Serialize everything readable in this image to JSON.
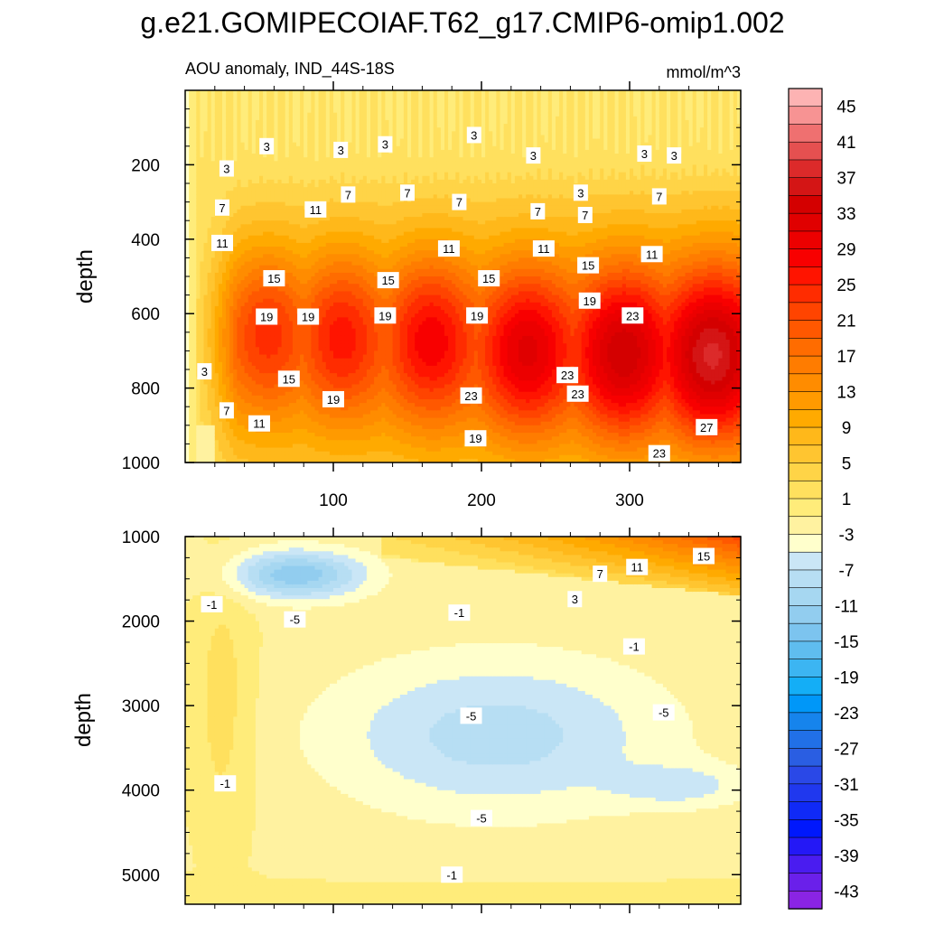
{
  "figure": {
    "title": "g.e21.GOMIPECOIAF.T62_g17.CMIP6-omip1.002",
    "subtitle_left": "AOU anomaly, IND_44S-18S",
    "units": "mmol/m^3"
  },
  "chart_data": [
    {
      "type": "contour",
      "name": "upper panel",
      "ylabel": "depth",
      "xlabel": "",
      "xlim": [
        0,
        375
      ],
      "ylim": [
        1000,
        0
      ],
      "xticks": [
        100,
        200,
        300
      ],
      "yticks": [
        200,
        400,
        600,
        800,
        1000
      ],
      "field": {
        "surface_value": 1,
        "cells": [
          {
            "x": 55,
            "y": 640,
            "value": 21
          },
          {
            "x": 105,
            "y": 650,
            "value": 22
          },
          {
            "x": 165,
            "y": 660,
            "value": 23
          },
          {
            "x": 230,
            "y": 700,
            "value": 25
          },
          {
            "x": 295,
            "y": 710,
            "value": 27
          },
          {
            "x": 355,
            "y": 720,
            "value": 29
          }
        ]
      },
      "contour_labels": [
        {
          "text": "3",
          "x": 55,
          "y": 150
        },
        {
          "text": "3",
          "x": 105,
          "y": 160
        },
        {
          "text": "3",
          "x": 135,
          "y": 145
        },
        {
          "text": "3",
          "x": 195,
          "y": 120
        },
        {
          "text": "3",
          "x": 235,
          "y": 175
        },
        {
          "text": "3",
          "x": 310,
          "y": 170
        },
        {
          "text": "3",
          "x": 330,
          "y": 175
        },
        {
          "text": "3",
          "x": 28,
          "y": 210
        },
        {
          "text": "3",
          "x": 267,
          "y": 275
        },
        {
          "text": "3",
          "x": 13,
          "y": 755
        },
        {
          "text": "7",
          "x": 110,
          "y": 280
        },
        {
          "text": "7",
          "x": 150,
          "y": 275
        },
        {
          "text": "7",
          "x": 185,
          "y": 300
        },
        {
          "text": "7",
          "x": 238,
          "y": 325
        },
        {
          "text": "7",
          "x": 270,
          "y": 335
        },
        {
          "text": "7",
          "x": 320,
          "y": 285
        },
        {
          "text": "7",
          "x": 25,
          "y": 315
        },
        {
          "text": "7",
          "x": 28,
          "y": 860
        },
        {
          "text": "11",
          "x": 88,
          "y": 320
        },
        {
          "text": "11",
          "x": 25,
          "y": 410
        },
        {
          "text": "11",
          "x": 178,
          "y": 425
        },
        {
          "text": "11",
          "x": 242,
          "y": 425
        },
        {
          "text": "11",
          "x": 315,
          "y": 440
        },
        {
          "text": "11",
          "x": 50,
          "y": 895
        },
        {
          "text": "15",
          "x": 60,
          "y": 505
        },
        {
          "text": "15",
          "x": 137,
          "y": 510
        },
        {
          "text": "15",
          "x": 205,
          "y": 505
        },
        {
          "text": "15",
          "x": 272,
          "y": 470
        },
        {
          "text": "15",
          "x": 70,
          "y": 775
        },
        {
          "text": "19",
          "x": 55,
          "y": 608
        },
        {
          "text": "19",
          "x": 83,
          "y": 608
        },
        {
          "text": "19",
          "x": 135,
          "y": 605
        },
        {
          "text": "19",
          "x": 197,
          "y": 605
        },
        {
          "text": "19",
          "x": 273,
          "y": 565
        },
        {
          "text": "19",
          "x": 100,
          "y": 830
        },
        {
          "text": "19",
          "x": 196,
          "y": 935
        },
        {
          "text": "23",
          "x": 302,
          "y": 605
        },
        {
          "text": "23",
          "x": 258,
          "y": 765
        },
        {
          "text": "23",
          "x": 193,
          "y": 820
        },
        {
          "text": "23",
          "x": 265,
          "y": 815
        },
        {
          "text": "23",
          "x": 320,
          "y": 975
        },
        {
          "text": "27",
          "x": 352,
          "y": 905
        }
      ]
    },
    {
      "type": "contour",
      "name": "lower panel",
      "ylabel": "depth",
      "xlabel": "",
      "xlim": [
        0,
        375
      ],
      "ylim": [
        5350,
        1000
      ],
      "xticks": [
        100,
        200,
        300
      ],
      "yticks": [
        1000,
        2000,
        3000,
        4000,
        5000
      ],
      "field": {
        "top_values": [
          -3,
          -7,
          -11,
          3,
          7,
          11,
          15
        ],
        "minima": [
          {
            "x": 75,
            "y": 1450,
            "value": -11
          },
          {
            "x": 195,
            "y": 3300,
            "value": -7
          },
          {
            "x": 335,
            "y": 3950,
            "value": -9
          }
        ]
      },
      "contour_labels": [
        {
          "text": "15",
          "x": 350,
          "y": 1230
        },
        {
          "text": "11",
          "x": 305,
          "y": 1360
        },
        {
          "text": "7",
          "x": 280,
          "y": 1440
        },
        {
          "text": "3",
          "x": 263,
          "y": 1740
        },
        {
          "text": "-1",
          "x": 18,
          "y": 1800
        },
        {
          "text": "-5",
          "x": 74,
          "y": 1980
        },
        {
          "text": "-1",
          "x": 185,
          "y": 1900
        },
        {
          "text": "-1",
          "x": 303,
          "y": 2300
        },
        {
          "text": "-5",
          "x": 193,
          "y": 3120
        },
        {
          "text": "-5",
          "x": 323,
          "y": 3080
        },
        {
          "text": "-1",
          "x": 27,
          "y": 3920
        },
        {
          "text": "-5",
          "x": 200,
          "y": 4330
        },
        {
          "text": "-1",
          "x": 180,
          "y": 5000
        }
      ]
    }
  ],
  "colorbar": {
    "labels": [
      "45",
      "41",
      "37",
      "33",
      "29",
      "25",
      "21",
      "17",
      "13",
      "9",
      "5",
      "1",
      "-3",
      "-7",
      "-11",
      "-15",
      "-19",
      "-23",
      "-27",
      "-31",
      "-35",
      "-39",
      "-43"
    ],
    "colors": [
      "#fdb3b3",
      "#f79393",
      "#ef7070",
      "#e55050",
      "#dc2a2a",
      "#d41515",
      "#d40000",
      "#e00000",
      "#ec0000",
      "#f80000",
      "#ff1400",
      "#ff2c00",
      "#ff4400",
      "#ff5800",
      "#ff6c00",
      "#ff7c00",
      "#ff8c00",
      "#ff9a00",
      "#ffaa00",
      "#ffb81a",
      "#ffc530",
      "#ffd447",
      "#ffe05e",
      "#ffec7a",
      "#fff2a0",
      "#ffffcc",
      "#cae6f6",
      "#b7def3",
      "#a6d7f1",
      "#92cdef",
      "#7cc4ef",
      "#5fbdef",
      "#3cb5f2",
      "#14aef6",
      "#0097f8",
      "#1684ec",
      "#2170e7",
      "#2a5ee2",
      "#2a48e7",
      "#2038ee",
      "#102af6",
      "#0018fc",
      "#2418f6",
      "#4a1cf0",
      "#6a20ea",
      "#8a24e4"
    ]
  }
}
